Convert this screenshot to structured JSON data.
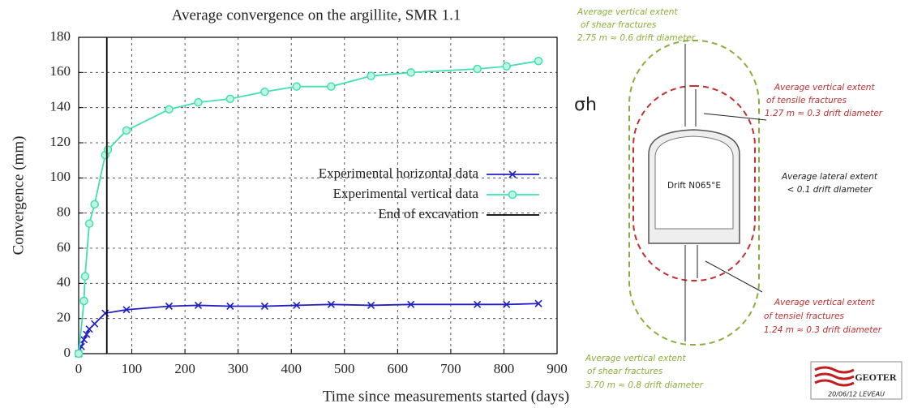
{
  "chart_data": {
    "type": "line",
    "title": "Average convergence on the argillite, SMR 1.1",
    "x_label": "Time since measurements started (days)",
    "y_label": "Convergence (mm)",
    "xlim": [
      0,
      900
    ],
    "xticks": [
      0,
      100,
      200,
      300,
      400,
      500,
      600,
      700,
      800,
      900
    ],
    "ylim": [
      0,
      180
    ],
    "yticks": [
      0,
      20,
      40,
      60,
      80,
      100,
      120,
      140,
      160,
      180
    ],
    "grid": true,
    "legend": "center-right",
    "series": [
      {
        "name": "Experimental horizontal data",
        "color": "#2020c0",
        "marker": "x",
        "x": [
          0,
          5,
          10,
          15,
          20,
          30,
          50,
          90,
          170,
          225,
          285,
          350,
          410,
          475,
          550,
          625,
          750,
          805,
          865
        ],
        "values": [
          0,
          4,
          8,
          11,
          14,
          17,
          23,
          25,
          27,
          27.5,
          27,
          27,
          27.5,
          28,
          27.5,
          28,
          28,
          28,
          28.5
        ]
      },
      {
        "name": "Experimental vertical data",
        "color": "#40e0b0",
        "marker": "o",
        "x": [
          0,
          10,
          12,
          20,
          30,
          50,
          55,
          90,
          170,
          225,
          285,
          350,
          410,
          475,
          550,
          625,
          750,
          805,
          865
        ],
        "values": [
          0,
          30,
          44,
          74,
          85,
          113,
          116,
          127,
          139,
          143,
          145,
          149,
          152,
          152,
          158,
          160,
          162,
          163.5,
          166.5
        ]
      },
      {
        "name": "End of excavation",
        "color": "#000000",
        "marker": "none",
        "x": [
          53,
          53
        ],
        "values": [
          0,
          180
        ]
      }
    ]
  },
  "diagram": {
    "symbol": "σh",
    "drift": "Drift N065°E",
    "shear_top": [
      "Average vertical extent",
      "of shear fractures",
      "2.75 m ≈ 0.6 drift diameter"
    ],
    "tensile_top": [
      "Average vertical extent",
      "of tensile fractures",
      "1.27 m ≈ 0.3 drift diameter"
    ],
    "lateral": [
      "Average lateral extent",
      "< 0.1 drift diameter"
    ],
    "tensile_bottom": [
      "Average vertical extent",
      "of tensiel fractures",
      "1.24 m ≈ 0.3 drift diameter"
    ],
    "shear_bottom": [
      "Average vertical extent",
      "of shear fractures",
      "3.70 m ≈ 0.8 drift diameter"
    ],
    "logo": "GEOTER",
    "logo_note": "20/06/12 LEVEAU"
  }
}
